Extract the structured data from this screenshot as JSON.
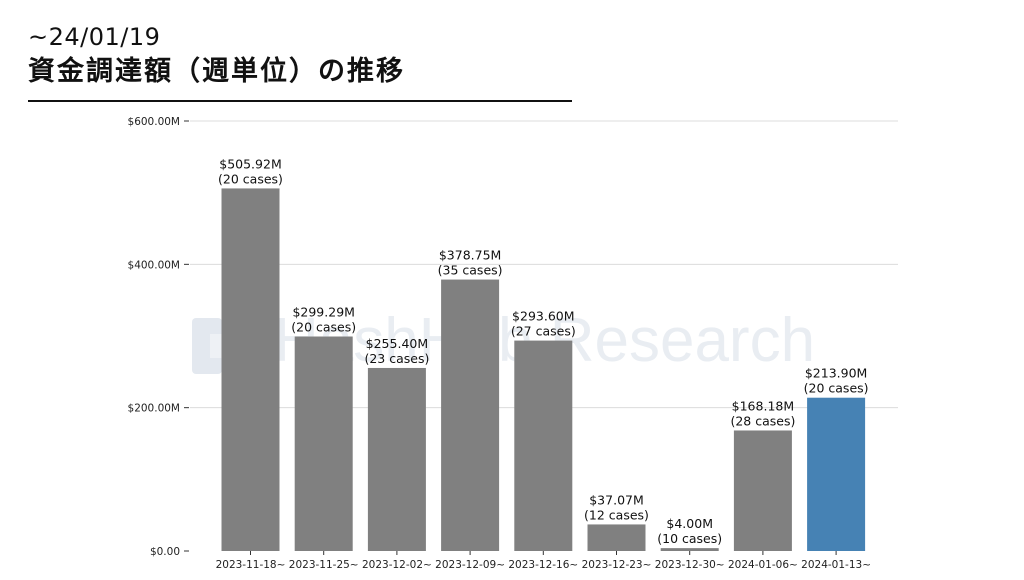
{
  "header": {
    "date_range": "~24/01/19",
    "title": "資金調達額（週単位）の推移"
  },
  "watermark": {
    "text": "HashHub Research"
  },
  "colors": {
    "default_bar": "#808080",
    "highlight_bar": "#4682b4",
    "grid": "#dcdcdc",
    "text": "#111111"
  },
  "chart_data": {
    "type": "bar",
    "title": "",
    "xlabel": "",
    "ylabel": "",
    "ylim": [
      0,
      600
    ],
    "y_ticks": [
      0,
      200,
      400,
      600
    ],
    "y_tick_labels": [
      "$0.00",
      "$200.00M",
      "$400.00M",
      "$600.00M"
    ],
    "grid": "horizontal",
    "categories": [
      "2023-11-18~",
      "2023-11-25~",
      "2023-12-02~",
      "2023-12-09~",
      "2023-12-16~",
      "2023-12-23~",
      "2023-12-30~",
      "2024-01-06~",
      "2024-01-13~"
    ],
    "values": [
      505.92,
      299.29,
      255.4,
      378.75,
      293.6,
      37.07,
      4.0,
      168.18,
      213.9
    ],
    "value_labels": [
      "$505.92M",
      "$299.29M",
      "$255.40M",
      "$378.75M",
      "$293.60M",
      "$37.07M",
      "$4.00M",
      "$168.18M",
      "$213.90M"
    ],
    "case_labels": [
      "(20 cases)",
      "(20 cases)",
      "(23 cases)",
      "(35 cases)",
      "(27 cases)",
      "(12 cases)",
      "(10 cases)",
      "(28 cases)",
      "(20 cases)"
    ],
    "highlight_index": 8
  }
}
